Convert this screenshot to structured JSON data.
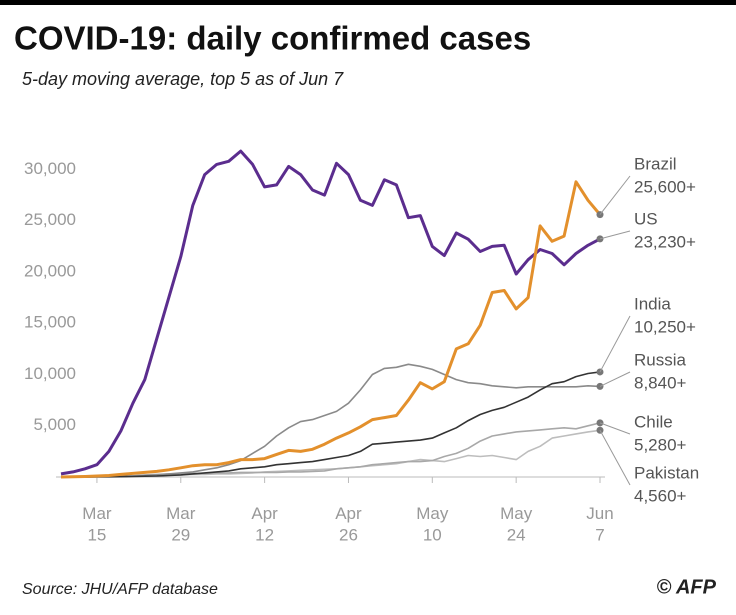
{
  "chart_data": {
    "type": "line",
    "title": "COVID-19: daily confirmed cases",
    "subtitle": "5-day moving average, top 5 as of Jun 7",
    "source": "Source: JHU/AFP database",
    "credit": "© AFP",
    "x": [
      "Mar 9",
      "Mar 11",
      "Mar 13",
      "Mar 15",
      "Mar 17",
      "Mar 19",
      "Mar 21",
      "Mar 23",
      "Mar 25",
      "Mar 27",
      "Mar 29",
      "Mar 31",
      "Apr 2",
      "Apr 4",
      "Apr 6",
      "Apr 8",
      "Apr 10",
      "Apr 12",
      "Apr 14",
      "Apr 16",
      "Apr 18",
      "Apr 20",
      "Apr 22",
      "Apr 24",
      "Apr 26",
      "Apr 28",
      "Apr 30",
      "May 2",
      "May 4",
      "May 6",
      "May 8",
      "May 10",
      "May 12",
      "May 14",
      "May 16",
      "May 18",
      "May 20",
      "May 22",
      "May 24",
      "May 26",
      "May 28",
      "May 30",
      "Jun 1",
      "Jun 3",
      "Jun 5",
      "Jun 7"
    ],
    "xticks": [
      "Mar 15",
      "Mar 29",
      "Apr 12",
      "Apr 26",
      "May 10",
      "May 24",
      "Jun 7"
    ],
    "ylim": [
      0,
      32000
    ],
    "yticks": [
      {
        "value": 5000,
        "label": "5,000"
      },
      {
        "value": 10000,
        "label": "10,000"
      },
      {
        "value": 15000,
        "label": "15,000"
      },
      {
        "value": 20000,
        "label": "20,000"
      },
      {
        "value": 25000,
        "label": "25,000"
      },
      {
        "value": 30000,
        "label": "30,000"
      }
    ],
    "series": [
      {
        "name": "Pakistan",
        "end_label": "4,560+",
        "color": "#bdbdbd",
        "values": [
          0,
          0,
          0,
          10,
          30,
          60,
          100,
          120,
          150,
          180,
          200,
          250,
          250,
          300,
          300,
          350,
          400,
          500,
          550,
          600,
          650,
          700,
          750,
          800,
          900,
          1000,
          1100,
          1200,
          1300,
          1500,
          1700,
          1600,
          1500,
          1800,
          2100,
          2000,
          2100,
          1900,
          1700,
          2500,
          3000,
          3800,
          4000,
          4200,
          4400,
          4560
        ]
      },
      {
        "name": "Chile",
        "end_label": "5,280+",
        "color": "#a8a8a8",
        "values": [
          0,
          0,
          10,
          20,
          40,
          80,
          120,
          200,
          250,
          300,
          300,
          350,
          350,
          400,
          400,
          450,
          450,
          450,
          450,
          500,
          500,
          550,
          600,
          800,
          900,
          1000,
          1200,
          1300,
          1400,
          1500,
          1500,
          1600,
          2000,
          2300,
          2800,
          3500,
          4000,
          4200,
          4400,
          4500,
          4600,
          4700,
          4800,
          4700,
          5000,
          5280
        ]
      },
      {
        "name": "Russia",
        "end_label": "8,840+",
        "color": "#8a8a8a",
        "values": [
          0,
          5,
          10,
          20,
          30,
          50,
          80,
          120,
          200,
          300,
          400,
          500,
          700,
          900,
          1200,
          1600,
          2300,
          3000,
          4000,
          4800,
          5400,
          5600,
          6000,
          6400,
          7200,
          8500,
          10000,
          10600,
          10700,
          11000,
          10800,
          10500,
          10000,
          9500,
          9200,
          9100,
          8900,
          8800,
          8700,
          8800,
          8800,
          8800,
          8800,
          8800,
          8900,
          8840
        ]
      },
      {
        "name": "India",
        "end_label": "10,250+",
        "color": "#333333",
        "values": [
          0,
          5,
          10,
          15,
          20,
          30,
          50,
          80,
          100,
          150,
          200,
          300,
          400,
          500,
          600,
          800,
          900,
          1000,
          1200,
          1300,
          1400,
          1500,
          1700,
          1900,
          2100,
          2500,
          3200,
          3300,
          3400,
          3500,
          3600,
          3800,
          4300,
          4800,
          5500,
          6100,
          6500,
          6800,
          7300,
          7800,
          8500,
          9100,
          9300,
          9800,
          10100,
          10250
        ]
      },
      {
        "name": "US",
        "end_label": "23,230+",
        "color": "#5b2d8e",
        "values": [
          300,
          500,
          800,
          1200,
          2500,
          4500,
          7200,
          9500,
          13500,
          17500,
          21500,
          26500,
          29500,
          30500,
          30800,
          31800,
          30500,
          28300,
          28500,
          30300,
          29500,
          28000,
          27500,
          30600,
          29500,
          27000,
          26500,
          29000,
          28500,
          25300,
          25500,
          22500,
          21600,
          23800,
          23200,
          22000,
          22500,
          22600,
          19800,
          21200,
          22200,
          21800,
          20700,
          21800,
          22600,
          23230
        ]
      },
      {
        "name": "Brazil",
        "end_label": "25,600+",
        "color": "#e3902c",
        "values": [
          0,
          20,
          50,
          100,
          150,
          250,
          350,
          450,
          550,
          700,
          900,
          1100,
          1200,
          1200,
          1400,
          1700,
          1700,
          1800,
          2200,
          2600,
          2500,
          2700,
          3200,
          3800,
          4300,
          4900,
          5600,
          5800,
          6000,
          7500,
          9200,
          8600,
          9300,
          12500,
          13000,
          14800,
          18000,
          18200,
          16400,
          17500,
          24500,
          23000,
          23500,
          28800,
          27000,
          25600
        ]
      }
    ]
  }
}
